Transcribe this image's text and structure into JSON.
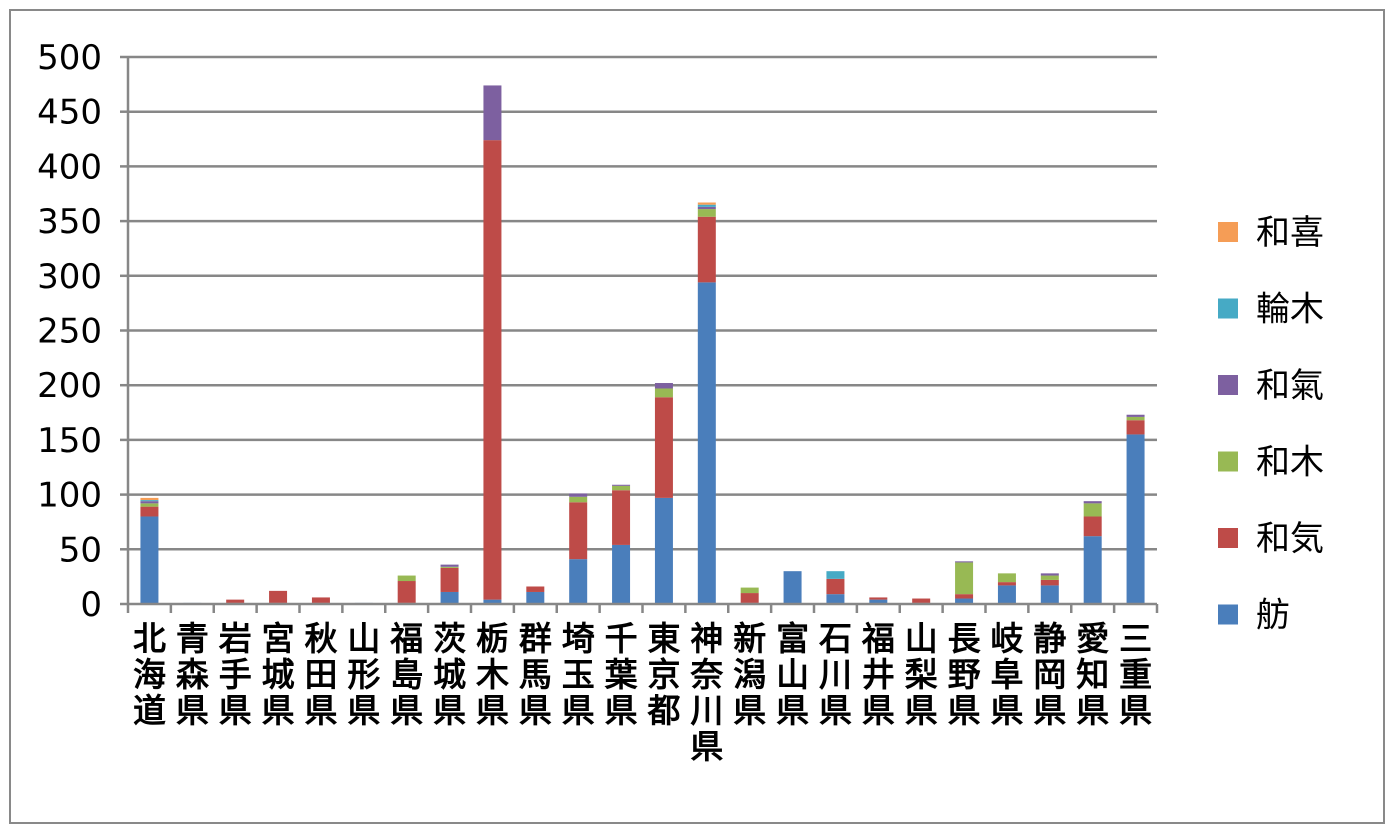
{
  "chart_data": {
    "type": "bar",
    "stacked": true,
    "title": "",
    "xlabel": "",
    "ylabel": "",
    "ylim": [
      0,
      500
    ],
    "yticks": [
      0,
      50,
      100,
      150,
      200,
      250,
      300,
      350,
      400,
      450,
      500
    ],
    "grid": true,
    "legend_position": "right",
    "categories": [
      "北海道",
      "青森県",
      "岩手県",
      "宮城県",
      "秋田県",
      "山形県",
      "福島県",
      "茨城県",
      "栃木県",
      "群馬県",
      "埼玉県",
      "千葉県",
      "東京都",
      "神奈川県",
      "新潟県",
      "富山県",
      "石川県",
      "福井県",
      "山梨県",
      "長野県",
      "岐阜県",
      "静岡県",
      "愛知県",
      "三重県"
    ],
    "series": [
      {
        "name": "舫",
        "color": "#4a7ebb",
        "values": [
          80,
          1,
          1,
          1,
          1,
          1,
          1,
          11,
          4,
          11,
          41,
          54,
          97,
          294,
          1,
          30,
          9,
          4,
          1,
          5,
          17,
          17,
          62,
          155
        ]
      },
      {
        "name": "和気",
        "color": "#be4b48",
        "values": [
          9,
          0,
          3,
          11,
          5,
          0,
          20,
          22,
          420,
          5,
          52,
          50,
          92,
          60,
          9,
          0,
          14,
          2,
          4,
          4,
          3,
          5,
          18,
          13
        ]
      },
      {
        "name": "和木",
        "color": "#98b954",
        "values": [
          3,
          0,
          0,
          0,
          0,
          0,
          5,
          1,
          0,
          0,
          5,
          4,
          8,
          7,
          5,
          0,
          0,
          0,
          0,
          29,
          8,
          4,
          12,
          3
        ]
      },
      {
        "name": "和氣",
        "color": "#7d60a0",
        "values": [
          2,
          0,
          0,
          0,
          0,
          0,
          0,
          2,
          50,
          0,
          3,
          1,
          5,
          2,
          0,
          0,
          0,
          0,
          0,
          1,
          0,
          2,
          2,
          2
        ]
      },
      {
        "name": "輪木",
        "color": "#46aac5",
        "values": [
          1,
          0,
          0,
          0,
          0,
          0,
          0,
          0,
          0,
          0,
          0,
          0,
          0,
          2,
          0,
          0,
          7,
          0,
          0,
          0,
          0,
          0,
          0,
          0
        ]
      },
      {
        "name": "和喜",
        "color": "#f59d56",
        "values": [
          2,
          0,
          0,
          0,
          0,
          0,
          0,
          0,
          0,
          0,
          0,
          0,
          0,
          2,
          0,
          0,
          0,
          0,
          0,
          0,
          0,
          0,
          0,
          0
        ]
      }
    ]
  },
  "colors": {
    "gridline": "#878787",
    "axis": "#878787",
    "frame": "#898989"
  }
}
